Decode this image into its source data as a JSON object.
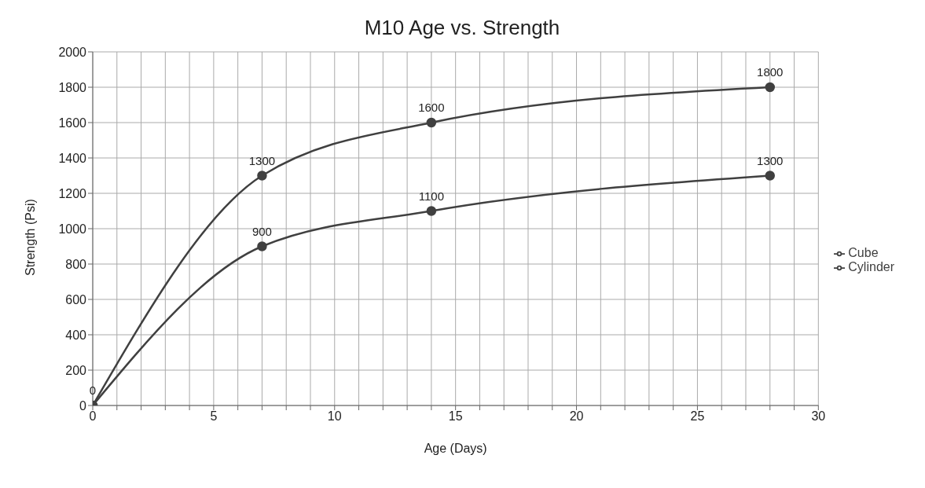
{
  "chart_data": {
    "type": "line",
    "title": "M10 Age vs. Strength",
    "xlabel": "Age (Days)",
    "ylabel": "Strength (Psi)",
    "series": [
      {
        "name": "Cylinder",
        "color": "#404040",
        "x": [
          0,
          7,
          14,
          28
        ],
        "values": [
          0,
          1300,
          1600,
          1800
        ],
        "value_labels": [
          "0",
          "1300",
          "1600",
          "1800"
        ]
      },
      {
        "name": "Cube",
        "color": "#404040",
        "x": [
          0,
          7,
          14,
          28
        ],
        "values": [
          0,
          900,
          1100,
          1300
        ],
        "value_labels": [
          null,
          "900",
          "1100",
          "1300"
        ]
      }
    ],
    "xlim": [
      0,
      30
    ],
    "xticks": [
      0,
      {
        "value": 1,
        "label": null
      },
      {
        "value": 2,
        "label": null
      },
      {
        "value": 3,
        "label": null
      },
      {
        "value": 4,
        "label": null
      },
      5,
      {
        "value": 6,
        "label": null
      },
      {
        "value": 7,
        "label": null
      },
      {
        "value": 8,
        "label": null
      },
      {
        "value": 9,
        "label": null
      },
      10,
      {
        "value": 11,
        "label": null
      },
      {
        "value": 12,
        "label": null
      },
      {
        "value": 13,
        "label": null
      },
      {
        "value": 14,
        "label": null
      },
      15,
      {
        "value": 16,
        "label": null
      },
      {
        "value": 17,
        "label": null
      },
      {
        "value": 18,
        "label": null
      },
      {
        "value": 19,
        "label": null
      },
      20,
      {
        "value": 21,
        "label": null
      },
      {
        "value": 22,
        "label": null
      },
      {
        "value": 23,
        "label": null
      },
      {
        "value": 24,
        "label": null
      },
      25,
      {
        "value": 26,
        "label": null
      },
      {
        "value": 27,
        "label": null
      },
      {
        "value": 28,
        "label": null
      },
      {
        "value": 29,
        "label": null
      },
      30
    ],
    "ylim": [
      0,
      2000
    ],
    "yticks": [
      0,
      200,
      400,
      600,
      800,
      1000,
      1200,
      1400,
      1600,
      1800,
      2000
    ],
    "grid": true,
    "legend": "right",
    "marker": "circle",
    "line_style": "solid"
  }
}
